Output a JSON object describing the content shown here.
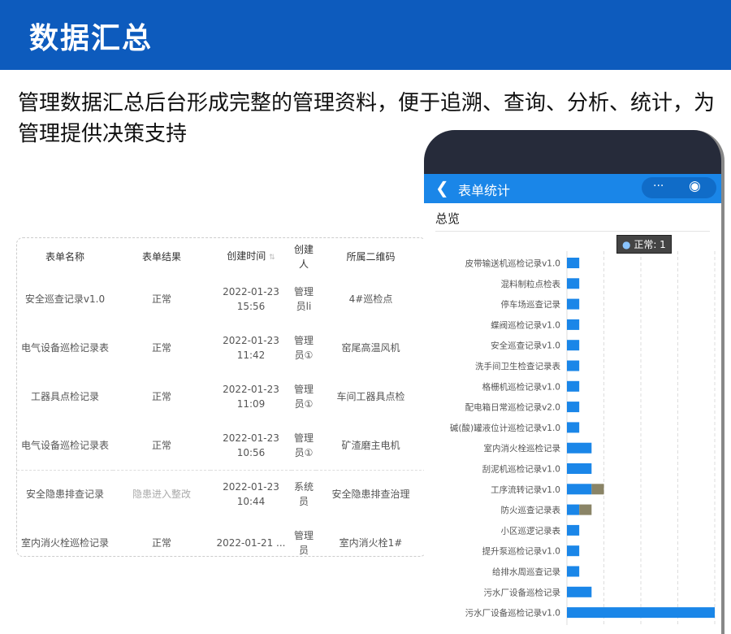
{
  "banner": {
    "title": "数据汇总"
  },
  "description": "管理数据汇总后台形成完整的管理资料，便于追溯、查询、分析、统计，为管理提供决策支持",
  "table": {
    "headers": [
      "表单名称",
      "表单结果",
      "创建时间",
      "创建人",
      "所属二维码"
    ],
    "rows": [
      [
        "安全巡查记录v1.0",
        "正常",
        "2022-01-23 15:56",
        "管理员li",
        "4#巡检点"
      ],
      [
        "电气设备巡检记录表",
        "正常",
        "2022-01-23 11:42",
        "管理员①",
        "窑尾高温风机"
      ],
      [
        "工器具点检记录",
        "正常",
        "2022-01-23 11:09",
        "管理员①",
        "车间工器具点检"
      ],
      [
        "电气设备巡检记录表",
        "正常",
        "2022-01-23 10:56",
        "管理员①",
        "矿渣磨主电机"
      ],
      [
        "安全隐患排查记录",
        "隐患进入整改",
        "2022-01-23 10:44",
        "系统员",
        "安全隐患排查治理"
      ],
      [
        "室内消火栓巡检记录",
        "正常",
        "2022-01-21 ...",
        "管理员",
        "室内消火栓1#"
      ]
    ]
  },
  "phone": {
    "nav_title": "表单统计",
    "back_icon": "chevron-left-icon",
    "more_icon": "···",
    "section": "总览",
    "tooltip": "正常: 1"
  },
  "chart_data": {
    "type": "bar",
    "orientation": "horizontal",
    "stacked": true,
    "categories": [
      "皮带输送机巡检记录v1.0",
      "混料制粒点检表",
      "停车场巡查记录",
      "蝶阀巡检记录v1.0",
      "安全巡查记录v1.0",
      "洗手间卫生检查记录表",
      "格栅机巡检记录v1.0",
      "配电箱日常巡检记录v2.0",
      "碱(酸)罐液位计巡检记录v1.0",
      "室内消火栓巡检记录",
      "刮泥机巡检记录v1.0",
      "工序流转记录v1.0",
      "防火巡查记录表",
      "小区巡逻记录表",
      "提升泵巡检记录v1.0",
      "给排水周巡查记录",
      "污水厂设备巡检记录",
      "污水厂设备巡检记录v1.0"
    ],
    "series": [
      {
        "name": "正常",
        "color": "#1a86e8",
        "values": [
          1,
          1,
          1,
          1,
          1,
          1,
          1,
          1,
          1,
          2,
          2,
          2,
          1,
          1,
          1,
          1,
          2,
          12
        ]
      },
      {
        "color": "#8a8466",
        "values": [
          0,
          0,
          0,
          0,
          0,
          0,
          0,
          0,
          0,
          0,
          0,
          1,
          1,
          0,
          0,
          0,
          0,
          0
        ]
      }
    ],
    "xlim": [
      0,
      12
    ],
    "grid": true
  }
}
